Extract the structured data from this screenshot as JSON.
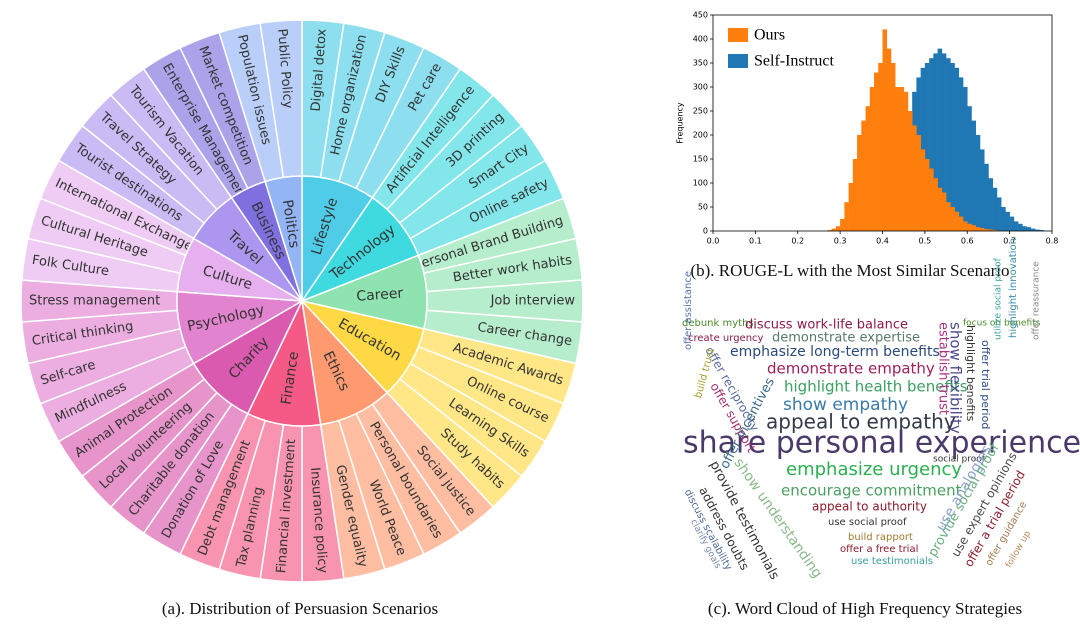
{
  "chart_data": [
    {
      "type": "sunburst",
      "caption": "(a). Distribution of Persuasion Scenarios",
      "groups": [
        {
          "name": "Lifestyle",
          "color": "#4fcde8",
          "children": [
            {
              "name": "Digital detox",
              "value": 1
            },
            {
              "name": "Home organization",
              "value": 1
            },
            {
              "name": "DIY Skills",
              "value": 1
            },
            {
              "name": "Pet care",
              "value": 1
            }
          ]
        },
        {
          "name": "Technology",
          "color": "#3fd9e0",
          "children": [
            {
              "name": "Artificial Intelligence",
              "value": 1
            },
            {
              "name": "3D printing",
              "value": 1
            },
            {
              "name": "Smart City",
              "value": 1
            },
            {
              "name": "Online safety",
              "value": 1
            }
          ]
        },
        {
          "name": "Career",
          "color": "#8fe3b0",
          "children": [
            {
              "name": "Personal Brand Building",
              "value": 1
            },
            {
              "name": "Better work habits",
              "value": 1
            },
            {
              "name": "Job interview",
              "value": 1
            },
            {
              "name": "Career change",
              "value": 1
            }
          ]
        },
        {
          "name": "Education",
          "color": "#ffd845",
          "children": [
            {
              "name": "Academic Awards",
              "value": 1
            },
            {
              "name": "Online course",
              "value": 1
            },
            {
              "name": "Learning Skills",
              "value": 1
            },
            {
              "name": "Study habits",
              "value": 1
            }
          ]
        },
        {
          "name": "Ethics",
          "color": "#ff9a70",
          "children": [
            {
              "name": "Social justice",
              "value": 1
            },
            {
              "name": "Personal boundaries",
              "value": 1
            },
            {
              "name": "World Peace",
              "value": 1
            },
            {
              "name": "Gender equality",
              "value": 1
            }
          ]
        },
        {
          "name": "Finance",
          "color": "#f55a86",
          "children": [
            {
              "name": "Insurance policy",
              "value": 1
            },
            {
              "name": "Financial investment",
              "value": 1
            },
            {
              "name": "Tax planning",
              "value": 1
            },
            {
              "name": "Debt management",
              "value": 1
            }
          ]
        },
        {
          "name": "Charity",
          "color": "#d95aae",
          "children": [
            {
              "name": "Donation of Love",
              "value": 1
            },
            {
              "name": "Charitable donation",
              "value": 1
            },
            {
              "name": "Local volunteering",
              "value": 1
            },
            {
              "name": "Animal Protection",
              "value": 1
            }
          ]
        },
        {
          "name": "Psychology",
          "color": "#e283cf",
          "children": [
            {
              "name": "Mindfulness",
              "value": 1
            },
            {
              "name": "Self-care",
              "value": 1
            },
            {
              "name": "Critical thinking",
              "value": 1
            },
            {
              "name": "Stress management",
              "value": 1
            }
          ]
        },
        {
          "name": "Culture",
          "color": "#e6b0ee",
          "children": [
            {
              "name": "Folk Culture",
              "value": 1
            },
            {
              "name": "Cultural Heritage",
              "value": 1
            },
            {
              "name": "International Exchange",
              "value": 1
            }
          ]
        },
        {
          "name": "Travel",
          "color": "#ad96f0",
          "children": [
            {
              "name": "Tourist destinations",
              "value": 1
            },
            {
              "name": "Travel Strategy",
              "value": 1
            },
            {
              "name": "Tourism Vacation",
              "value": 1
            }
          ]
        },
        {
          "name": "Business",
          "color": "#7f70df",
          "children": [
            {
              "name": "Enterprise Management",
              "value": 1
            },
            {
              "name": "Market competition",
              "value": 1
            }
          ]
        },
        {
          "name": "Politics",
          "color": "#93b4f5",
          "children": [
            {
              "name": "Population issues",
              "value": 1
            },
            {
              "name": "Public Policy",
              "value": 1
            }
          ]
        }
      ]
    },
    {
      "type": "histogram",
      "caption": "(b). ROUGE-L with the Most Similar Scenario",
      "ylabel": "Frequency",
      "legend": "upper left",
      "bins": [
        0.27,
        0.28,
        0.29,
        0.3,
        0.31,
        0.32,
        0.33,
        0.34,
        0.35,
        0.36,
        0.37,
        0.38,
        0.39,
        0.4,
        0.41,
        0.42,
        0.43,
        0.44,
        0.45,
        0.46,
        0.47,
        0.48,
        0.49,
        0.5,
        0.51,
        0.52,
        0.53,
        0.54,
        0.55,
        0.56,
        0.57,
        0.58,
        0.59,
        0.6,
        0.61,
        0.62,
        0.63,
        0.64,
        0.65,
        0.66,
        0.67,
        0.68,
        0.69,
        0.7,
        0.71,
        0.72,
        0.73,
        0.74,
        0.75,
        0.76,
        0.77,
        0.78
      ],
      "series": [
        {
          "name": "Ours",
          "color": "#ff7f0e",
          "values": [
            2,
            5,
            10,
            25,
            60,
            100,
            150,
            200,
            230,
            260,
            300,
            330,
            350,
            420,
            380,
            350,
            300,
            300,
            290,
            250,
            220,
            200,
            170,
            150,
            130,
            110,
            90,
            80,
            60,
            50,
            40,
            30,
            20,
            15,
            12,
            8,
            6,
            4,
            3,
            2,
            1,
            0,
            0,
            0,
            0,
            0,
            0,
            0,
            0,
            0,
            0
          ]
        },
        {
          "name": "Self-Instruct",
          "color": "#1f77b4",
          "values": [
            0,
            0,
            0,
            0,
            0,
            0,
            0,
            0,
            2,
            5,
            10,
            20,
            40,
            60,
            80,
            110,
            150,
            180,
            220,
            250,
            290,
            320,
            340,
            350,
            360,
            370,
            380,
            370,
            360,
            350,
            340,
            320,
            300,
            260,
            230,
            200,
            170,
            140,
            110,
            90,
            70,
            50,
            40,
            30,
            20,
            15,
            10,
            8,
            5,
            3,
            2
          ]
        }
      ],
      "xlim": [
        0,
        0.8
      ],
      "xticks": [
        {
          "value": 0,
          "label": "0.0"
        },
        0.1,
        0.2,
        0.3,
        0.4,
        0.5,
        0.6,
        0.7,
        0.8
      ],
      "ylim": [
        0,
        450
      ],
      "yticks": [
        0,
        50,
        100,
        150,
        200,
        250,
        300,
        350,
        400,
        450
      ]
    },
    {
      "type": "wordcloud",
      "caption": "(c). Word Cloud of High Frequency Strategies",
      "words": [
        {
          "text": "debunk myths",
          "color": "#4a8a2a"
        },
        {
          "text": "discuss work-life balance",
          "color": "#8b1a4a"
        },
        {
          "text": "create urgency",
          "color": "#8b1a4a"
        },
        {
          "text": "demonstrate expertise",
          "color": "#5a7a6a"
        },
        {
          "text": "emphasize long-term benefits",
          "color": "#2a4a7a"
        },
        {
          "text": "demonstrate empathy",
          "color": "#a0205a"
        },
        {
          "text": "highlight health benefits",
          "color": "#3aa060"
        },
        {
          "text": "show empathy",
          "color": "#3a7aaa"
        },
        {
          "text": "appeal to empathy",
          "color": "#333a4a"
        },
        {
          "text": "share personal experience",
          "color": "#4a3a6a"
        },
        {
          "text": "social proof",
          "color": "#333333"
        },
        {
          "text": "emphasize urgency",
          "color": "#2ab050"
        },
        {
          "text": "encourage commitment",
          "color": "#4aa060"
        },
        {
          "text": "appeal to authority",
          "color": "#8b1a2a"
        },
        {
          "text": "use social proof",
          "color": "#333333"
        },
        {
          "text": "build rapport",
          "color": "#a07a30"
        },
        {
          "text": "offer a free trial",
          "color": "#8b1a2a"
        },
        {
          "text": "use testimonials",
          "color": "#3aa0a0"
        },
        {
          "text": "focus on benefits",
          "color": "#4a8a2a"
        },
        {
          "text": "offer assistance",
          "color": "#5a70b0"
        },
        {
          "text": "offer reciprocity",
          "color": "#5a6aa0"
        },
        {
          "text": "build trust",
          "color": "#a0a030"
        },
        {
          "text": "offer support",
          "color": "#a03070"
        },
        {
          "text": "establish trust",
          "color": "#b03080"
        },
        {
          "text": "show flexibility",
          "color": "#4a4a8a"
        },
        {
          "text": "highlight benefits",
          "color": "#333333"
        },
        {
          "text": "offer trial period",
          "color": "#2a4a8a"
        },
        {
          "text": "utilize social proof",
          "color": "#3aa0a0"
        },
        {
          "text": "highlight innovation",
          "color": "#3a8aaa"
        },
        {
          "text": "offer reassurance",
          "color": "#888888"
        },
        {
          "text": "show understanding",
          "color": "#8aba8a"
        },
        {
          "text": "offer incentives",
          "color": "#3a6a8a"
        },
        {
          "text": "provide testimonials",
          "color": "#333333"
        },
        {
          "text": "address doubts",
          "color": "#333333"
        },
        {
          "text": "discuss scalability",
          "color": "#4a6a9a"
        },
        {
          "text": "clarify goals",
          "color": "#7a8aaa"
        },
        {
          "text": "use analogies",
          "color": "#8aa0d0"
        },
        {
          "text": "provide social proof",
          "color": "#6ab080"
        },
        {
          "text": "use expert opinions",
          "color": "#4a4a4a"
        },
        {
          "text": "offer a trial period",
          "color": "#8b1a2a"
        },
        {
          "text": "offer guidance",
          "color": "#a07a50"
        },
        {
          "text": "follow up",
          "color": "#c08a60"
        }
      ]
    }
  ]
}
